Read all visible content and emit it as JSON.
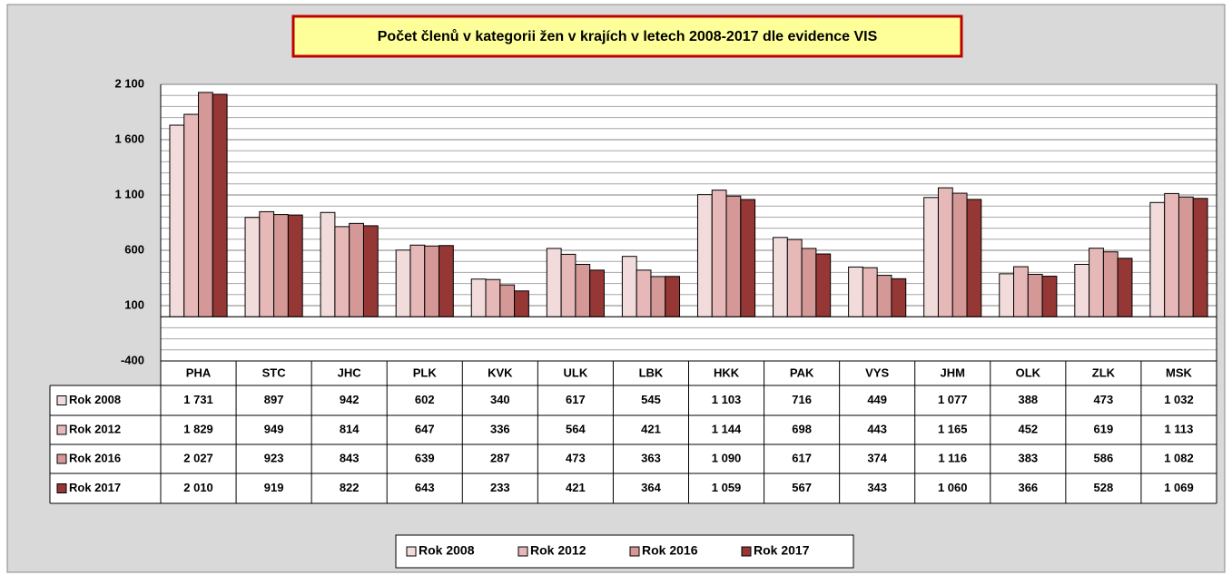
{
  "chart_data": {
    "type": "bar",
    "title": "Počet členů v kategorii žen v krajích v letech 2008-2017 dle evidence VIS",
    "categories": [
      "PHA",
      "STC",
      "JHC",
      "PLK",
      "KVK",
      "ULK",
      "LBK",
      "HKK",
      "PAK",
      "VYS",
      "JHM",
      "OLK",
      "ZLK",
      "MSK"
    ],
    "series": [
      {
        "name": "Rok 2008",
        "color": "#f2dcdb",
        "values": [
          1731,
          897,
          942,
          602,
          340,
          617,
          545,
          1103,
          716,
          449,
          1077,
          388,
          473,
          1032
        ],
        "value_labels": [
          "1 731",
          "897",
          "942",
          "602",
          "340",
          "617",
          "545",
          "1 103",
          "716",
          "449",
          "1 077",
          "388",
          "473",
          "1 032"
        ]
      },
      {
        "name": "Rok 2012",
        "color": "#e6b9b8",
        "values": [
          1829,
          949,
          814,
          647,
          336,
          564,
          421,
          1144,
          698,
          443,
          1165,
          452,
          619,
          1113
        ],
        "value_labels": [
          "1 829",
          "949",
          "814",
          "647",
          "336",
          "564",
          "421",
          "1 144",
          "698",
          "443",
          "1 165",
          "452",
          "619",
          "1 113"
        ]
      },
      {
        "name": "Rok 2016",
        "color": "#d49896",
        "values": [
          2027,
          923,
          843,
          639,
          287,
          473,
          363,
          1090,
          617,
          374,
          1116,
          383,
          586,
          1082
        ],
        "value_labels": [
          "2 027",
          "923",
          "843",
          "639",
          "287",
          "473",
          "363",
          "1 090",
          "617",
          "374",
          "1 116",
          "383",
          "586",
          "1 082"
        ]
      },
      {
        "name": "Rok 2017",
        "color": "#953735",
        "values": [
          2010,
          919,
          822,
          643,
          233,
          421,
          364,
          1059,
          567,
          343,
          1060,
          366,
          528,
          1069
        ],
        "value_labels": [
          "2 010",
          "919",
          "822",
          "643",
          "233",
          "421",
          "364",
          "1 059",
          "567",
          "343",
          "1 060",
          "366",
          "528",
          "1 069"
        ]
      }
    ],
    "ylim": [
      -400,
      2100
    ],
    "yticks": [
      -400,
      100,
      600,
      {
        "value": 1100,
        "label": "1 100"
      },
      {
        "value": 1600,
        "label": "1 600"
      },
      {
        "value": 2100,
        "label": "2 100"
      }
    ],
    "minor_yticks": [
      -300,
      -200,
      -100,
      0,
      200,
      300,
      400,
      500,
      700,
      800,
      900,
      1000,
      1200,
      1300,
      1400,
      1500,
      1700,
      1800,
      1900,
      2000
    ],
    "grid": true
  }
}
